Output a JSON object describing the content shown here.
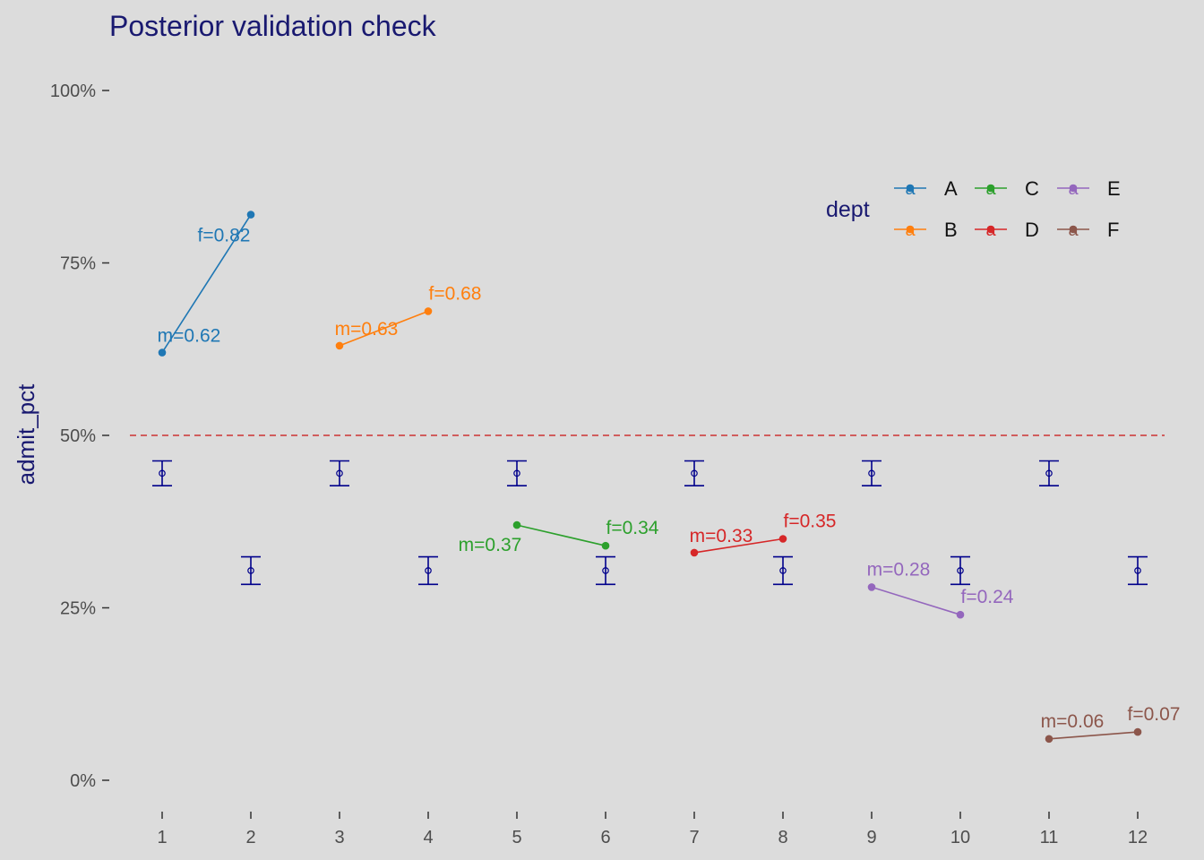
{
  "chart_data": {
    "type": "line",
    "title": "Posterior validation check",
    "xlabel": "",
    "ylabel": "admit_pct",
    "x_ticks": [
      "1",
      "2",
      "3",
      "4",
      "5",
      "6",
      "7",
      "8",
      "9",
      "10",
      "11",
      "12"
    ],
    "xlim": [
      0.5,
      12.5
    ],
    "ylim": [
      -0.05,
      1.05
    ],
    "y_ticks": [
      {
        "value": 0,
        "label": "0%"
      },
      {
        "value": 0.25,
        "label": "25%"
      },
      {
        "value": 0.5,
        "label": "50%"
      },
      {
        "value": 0.75,
        "label": "75%"
      },
      {
        "value": 1.0,
        "label": "100%"
      }
    ],
    "reference_line": {
      "y": 0.5,
      "style": "dashed",
      "color": "#cc3333"
    },
    "grid": false,
    "series": [
      {
        "name": "A",
        "color": "#1f77b4",
        "points": [
          {
            "x": 1,
            "y": 0.62,
            "label": "m=0.62"
          },
          {
            "x": 2,
            "y": 0.82,
            "label": "f=0.82"
          }
        ]
      },
      {
        "name": "B",
        "color": "#ff7f0e",
        "points": [
          {
            "x": 3,
            "y": 0.63,
            "label": "m=0.63"
          },
          {
            "x": 4,
            "y": 0.68,
            "label": "f=0.68"
          }
        ]
      },
      {
        "name": "C",
        "color": "#2ca02c",
        "points": [
          {
            "x": 5,
            "y": 0.37,
            "label": "m=0.37"
          },
          {
            "x": 6,
            "y": 0.34,
            "label": "f=0.34"
          }
        ]
      },
      {
        "name": "D",
        "color": "#d62728",
        "points": [
          {
            "x": 7,
            "y": 0.33,
            "label": "m=0.33"
          },
          {
            "x": 8,
            "y": 0.35,
            "label": "f=0.35"
          }
        ]
      },
      {
        "name": "E",
        "color": "#9467bd",
        "points": [
          {
            "x": 9,
            "y": 0.28,
            "label": "m=0.28"
          },
          {
            "x": 10,
            "y": 0.24,
            "label": "f=0.24"
          }
        ]
      },
      {
        "name": "F",
        "color": "#8c564b",
        "points": [
          {
            "x": 11,
            "y": 0.06,
            "label": "m=0.06"
          },
          {
            "x": 12,
            "y": 0.07,
            "label": "f=0.07"
          }
        ]
      }
    ],
    "error_bars": {
      "color": "#00008b",
      "items": [
        {
          "x": 1,
          "mean": 0.445,
          "low": 0.427,
          "high": 0.463
        },
        {
          "x": 2,
          "mean": 0.304,
          "low": 0.284,
          "high": 0.324
        },
        {
          "x": 3,
          "mean": 0.445,
          "low": 0.427,
          "high": 0.463
        },
        {
          "x": 4,
          "mean": 0.304,
          "low": 0.284,
          "high": 0.324
        },
        {
          "x": 5,
          "mean": 0.445,
          "low": 0.427,
          "high": 0.463
        },
        {
          "x": 6,
          "mean": 0.304,
          "low": 0.284,
          "high": 0.324
        },
        {
          "x": 7,
          "mean": 0.445,
          "low": 0.427,
          "high": 0.463
        },
        {
          "x": 8,
          "mean": 0.304,
          "low": 0.284,
          "high": 0.324
        },
        {
          "x": 9,
          "mean": 0.445,
          "low": 0.427,
          "high": 0.463
        },
        {
          "x": 10,
          "mean": 0.304,
          "low": 0.284,
          "high": 0.324
        },
        {
          "x": 11,
          "mean": 0.445,
          "low": 0.427,
          "high": 0.463
        },
        {
          "x": 12,
          "mean": 0.304,
          "low": 0.284,
          "high": 0.324
        }
      ]
    },
    "legend": {
      "title": "dept",
      "placement": "top-right",
      "key_glyph": "a",
      "entries": [
        "A",
        "B",
        "C",
        "D",
        "E",
        "F"
      ]
    }
  }
}
